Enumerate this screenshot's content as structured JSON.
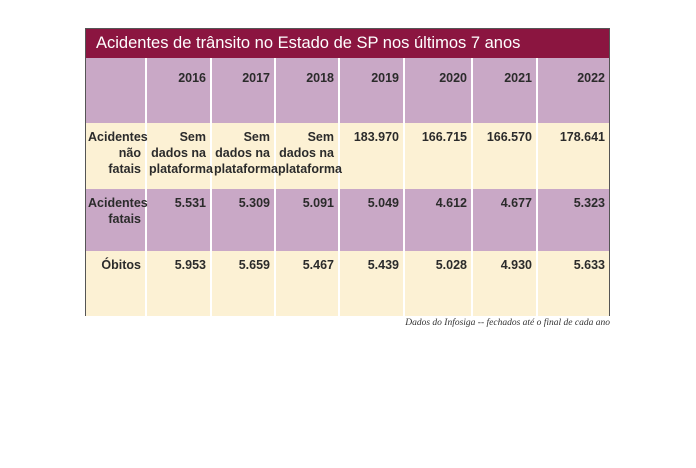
{
  "colors": {
    "title_bg": "#8b1540",
    "purple_row": "#c9a8c6",
    "cream_row": "#fcf1d4"
  },
  "chart_data": {
    "type": "table",
    "title": "Acidentes de trânsito no Estado de SP nos últimos 7 anos",
    "columns": [
      "",
      "2016",
      "2017",
      "2018",
      "2019",
      "2020",
      "2021",
      "2022"
    ],
    "rows": [
      {
        "label": "Acidentes não fatais",
        "values": [
          "Sem dados na plataforma",
          "Sem dados na plataforma",
          "Sem dados na plataforma",
          "183.970",
          "166.715",
          "166.570",
          "178.641"
        ]
      },
      {
        "label": "Acidentes fatais",
        "values": [
          "5.531",
          "5.309",
          "5.091",
          "5.049",
          "4.612",
          "4.677",
          "5.323"
        ]
      },
      {
        "label": "Óbitos",
        "values": [
          "5.953",
          "5.659",
          "5.467",
          "5.439",
          "5.028",
          "4.930",
          "5.633"
        ]
      }
    ],
    "caption": "Dados do Infosiga -- fechados até o final de cada ano"
  }
}
